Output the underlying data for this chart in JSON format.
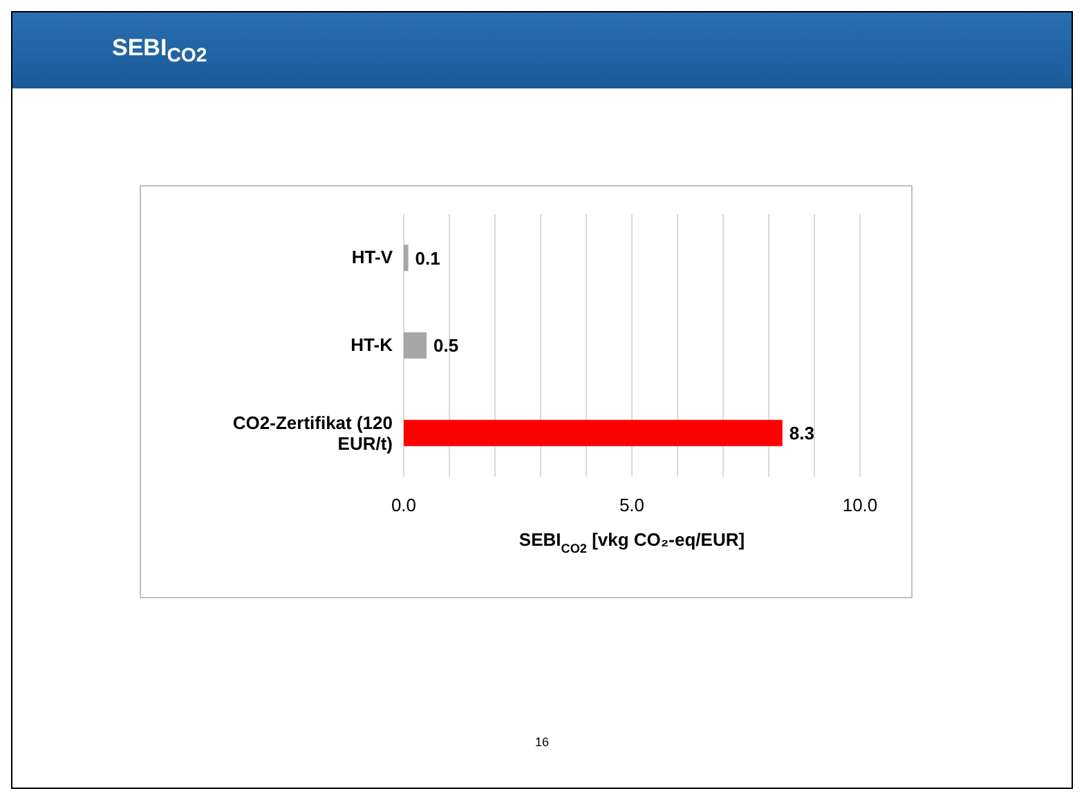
{
  "chart_data": {
    "type": "bar",
    "orientation": "horizontal",
    "title": "SEBI$_{CO2}$",
    "xlabel": "SEBI$_{CO2}$  [vkg CO₂-eq/EUR]",
    "categories": [
      "HT-V",
      "HT-K",
      "CO2-Zertifikat (120 EUR/t)"
    ],
    "values": [
      0.1,
      0.5,
      8.3
    ],
    "colors": [
      "#a6a6a6",
      "#a6a6a6",
      "#ff0000"
    ],
    "data_labels": true,
    "xlim": [
      0,
      10
    ],
    "xticks": [
      {
        "value": 0,
        "label": "0.0"
      },
      {
        "value": 1,
        "label": null
      },
      {
        "value": 2,
        "label": null
      },
      {
        "value": 3,
        "label": null
      },
      {
        "value": 4,
        "label": null
      },
      {
        "value": 5,
        "label": "5.0"
      },
      {
        "value": 6,
        "label": null
      },
      {
        "value": 7,
        "label": null
      },
      {
        "value": 8,
        "label": null
      },
      {
        "value": 9,
        "label": null
      },
      {
        "value": 10,
        "label": "10.0"
      }
    ],
    "grid": "x",
    "annotations": [
      "16"
    ]
  }
}
